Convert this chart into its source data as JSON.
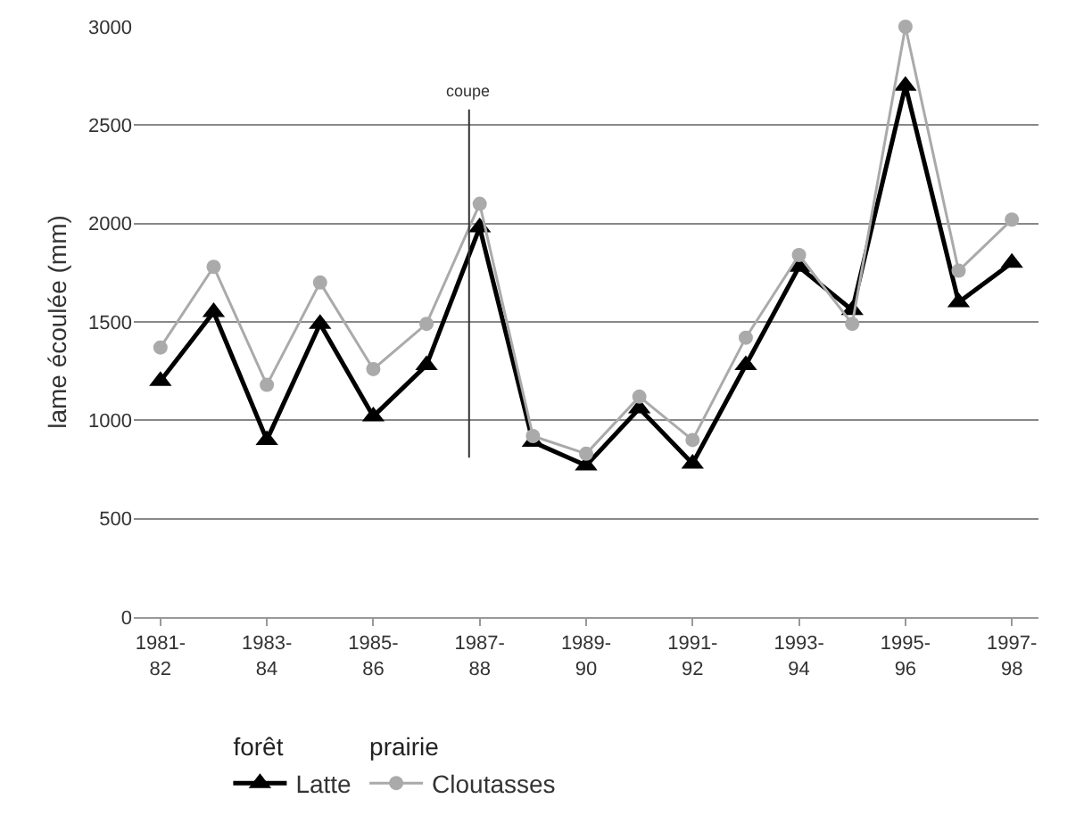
{
  "chart_data": {
    "type": "line",
    "ylabel": "lame écoulée (mm)",
    "categories": [
      "1981-82",
      null,
      "1983-84",
      null,
      "1985-86",
      null,
      "1987-88",
      null,
      "1989-90",
      null,
      "1991-92",
      null,
      "1993-94",
      null,
      "1995-96",
      null,
      "1997-98"
    ],
    "series": [
      {
        "name": "Latte",
        "color": "#000000",
        "marker": "triangle",
        "values": [
          1200,
          1550,
          900,
          1490,
          1020,
          1280,
          1980,
          890,
          770,
          1060,
          780,
          1280,
          1780,
          1560,
          2700,
          1600,
          1800
        ]
      },
      {
        "name": "Cloutasses",
        "color": "#aaaaaa",
        "marker": "circle",
        "values": [
          1370,
          1780,
          1180,
          1700,
          1260,
          1490,
          2100,
          920,
          830,
          1120,
          900,
          1420,
          1840,
          1490,
          3000,
          1760,
          2020
        ]
      }
    ],
    "annotations": [
      "forêt",
      "prairie"
    ],
    "ref_lines": [
      {
        "axis": "x",
        "value": "1987-88",
        "label": "coupe",
        "color": "#333333"
      }
    ],
    "ylim": [
      0,
      3000
    ],
    "yticks": [
      0,
      500,
      1000,
      1500,
      2000,
      2500,
      3000
    ],
    "grid": "y",
    "legend": "bottom",
    "line_style": "solid"
  }
}
